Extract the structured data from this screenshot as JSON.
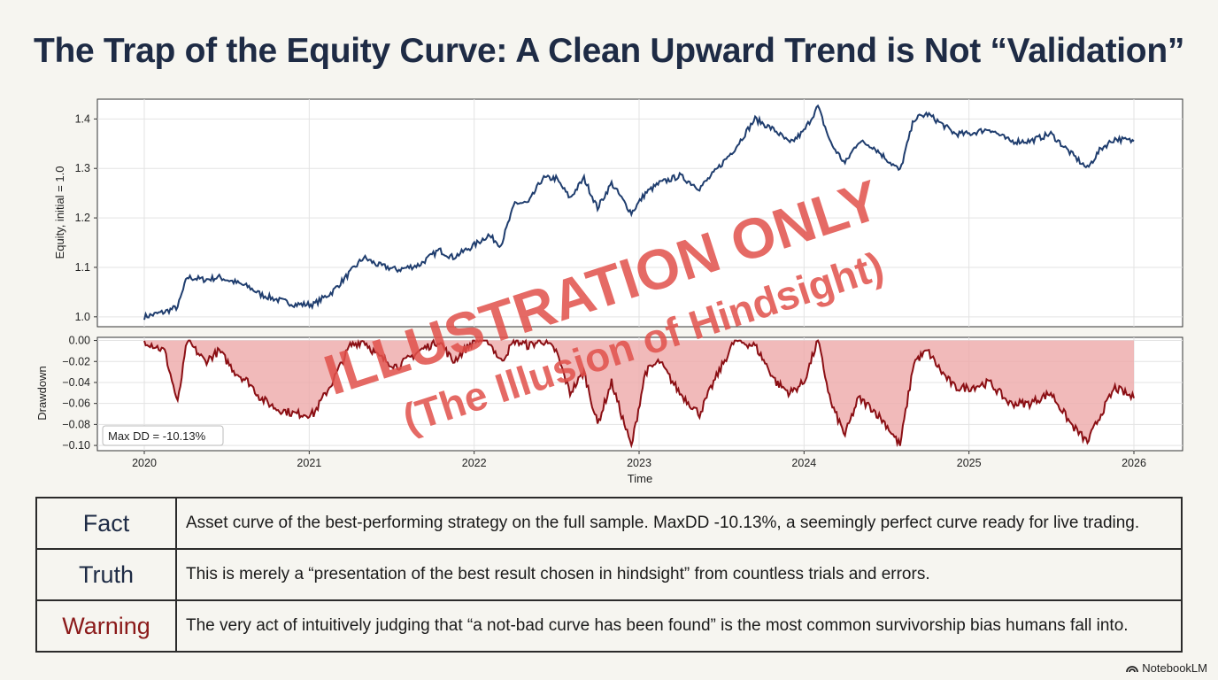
{
  "title": "The Trap of the Equity Curve: A Clean Upward Trend is Not “Validation”",
  "watermark": {
    "line1": "ILLUSTRATION ONLY",
    "line2": "(The Illusion of Hindsight)",
    "color": "#e0504a"
  },
  "colors": {
    "equity_line": "#1f3d6e",
    "drawdown_line": "#8b0f14",
    "drawdown_fill": "#eea9a9",
    "label_navy": "#1e2b45",
    "label_warn": "#8b1a1a"
  },
  "chart_data": [
    {
      "type": "line",
      "ylabel": "Equity, initial = 1.0",
      "ylim": [
        0.98,
        1.44
      ],
      "yticks": [
        "1.0",
        "1.1",
        "1.2",
        "1.3",
        "1.4"
      ],
      "grid": true,
      "series": [
        {
          "points": [
            [
              "2020-01-01",
              1.0
            ],
            [
              "2020-02-15",
              1.01
            ],
            [
              "2020-03-15",
              1.02
            ],
            [
              "2020-04-05",
              1.08
            ],
            [
              "2020-05-15",
              1.075
            ],
            [
              "2020-06-15",
              1.08
            ],
            [
              "2020-07-20",
              1.07
            ],
            [
              "2020-08-20",
              1.06
            ],
            [
              "2020-09-15",
              1.045
            ],
            [
              "2020-10-20",
              1.035
            ],
            [
              "2020-12-01",
              1.025
            ],
            [
              "2021-01-10",
              1.025
            ],
            [
              "2021-02-20",
              1.05
            ],
            [
              "2021-04-01",
              1.09
            ],
            [
              "2021-05-01",
              1.12
            ],
            [
              "2021-06-01",
              1.105
            ],
            [
              "2021-07-15",
              1.095
            ],
            [
              "2021-09-01",
              1.105
            ],
            [
              "2021-10-15",
              1.135
            ],
            [
              "2021-11-15",
              1.12
            ],
            [
              "2022-01-01",
              1.145
            ],
            [
              "2022-02-01",
              1.165
            ],
            [
              "2022-03-01",
              1.145
            ],
            [
              "2022-04-01",
              1.23
            ],
            [
              "2022-05-01",
              1.23
            ],
            [
              "2022-06-01",
              1.28
            ],
            [
              "2022-07-01",
              1.28
            ],
            [
              "2022-08-01",
              1.24
            ],
            [
              "2022-09-01",
              1.28
            ],
            [
              "2022-10-01",
              1.22
            ],
            [
              "2022-11-01",
              1.27
            ],
            [
              "2022-12-15",
              1.21
            ],
            [
              "2023-01-15",
              1.25
            ],
            [
              "2023-02-15",
              1.27
            ],
            [
              "2023-04-01",
              1.285
            ],
            [
              "2023-05-15",
              1.26
            ],
            [
              "2023-06-15",
              1.29
            ],
            [
              "2023-08-01",
              1.34
            ],
            [
              "2023-09-15",
              1.4
            ],
            [
              "2023-11-01",
              1.375
            ],
            [
              "2023-12-01",
              1.35
            ],
            [
              "2024-01-01",
              1.375
            ],
            [
              "2024-02-01",
              1.425
            ],
            [
              "2024-03-01",
              1.35
            ],
            [
              "2024-04-01",
              1.31
            ],
            [
              "2024-05-01",
              1.355
            ],
            [
              "2024-06-01",
              1.345
            ],
            [
              "2024-07-01",
              1.32
            ],
            [
              "2024-08-01",
              1.295
            ],
            [
              "2024-09-01",
              1.4
            ],
            [
              "2024-10-01",
              1.41
            ],
            [
              "2024-11-01",
              1.39
            ],
            [
              "2024-12-01",
              1.37
            ],
            [
              "2025-01-01",
              1.37
            ],
            [
              "2025-02-15",
              1.38
            ],
            [
              "2025-04-01",
              1.355
            ],
            [
              "2025-05-15",
              1.355
            ],
            [
              "2025-07-01",
              1.37
            ],
            [
              "2025-08-15",
              1.33
            ],
            [
              "2025-09-20",
              1.3
            ],
            [
              "2025-10-20",
              1.34
            ],
            [
              "2025-11-20",
              1.36
            ],
            [
              "2026-01-01",
              1.355
            ]
          ]
        }
      ]
    },
    {
      "type": "area",
      "ylabel": "Drawdown",
      "xlabel": "Time",
      "ylim": [
        -0.105,
        0.003
      ],
      "yticks": [
        "0.00",
        "−0.02",
        "−0.04",
        "−0.06",
        "−0.08",
        "−0.10"
      ],
      "xticks": [
        "2020",
        "2021",
        "2022",
        "2023",
        "2024",
        "2025",
        "2026"
      ],
      "grid": true,
      "annotation": "Max DD = -10.13%",
      "series": [
        {
          "points": [
            [
              "2020-01-01",
              0.0
            ],
            [
              "2020-02-15",
              -0.01
            ],
            [
              "2020-03-15",
              -0.06
            ],
            [
              "2020-04-05",
              0.0
            ],
            [
              "2020-05-15",
              -0.02
            ],
            [
              "2020-06-15",
              -0.01
            ],
            [
              "2020-07-20",
              -0.03
            ],
            [
              "2020-08-20",
              -0.04
            ],
            [
              "2020-09-15",
              -0.055
            ],
            [
              "2020-10-20",
              -0.065
            ],
            [
              "2020-12-01",
              -0.07
            ],
            [
              "2021-01-10",
              -0.07
            ],
            [
              "2021-02-20",
              -0.04
            ],
            [
              "2021-04-01",
              -0.005
            ],
            [
              "2021-05-01",
              0.0
            ],
            [
              "2021-06-01",
              -0.015
            ],
            [
              "2021-07-15",
              -0.025
            ],
            [
              "2021-09-01",
              -0.01
            ],
            [
              "2021-10-15",
              0.0
            ],
            [
              "2021-11-15",
              -0.02
            ],
            [
              "2022-01-01",
              0.0
            ],
            [
              "2022-02-01",
              0.0
            ],
            [
              "2022-03-01",
              -0.02
            ],
            [
              "2022-04-01",
              0.0
            ],
            [
              "2022-05-01",
              -0.005
            ],
            [
              "2022-06-01",
              0.0
            ],
            [
              "2022-07-01",
              -0.01
            ],
            [
              "2022-08-01",
              -0.05
            ],
            [
              "2022-09-01",
              -0.03
            ],
            [
              "2022-10-01",
              -0.08
            ],
            [
              "2022-11-01",
              -0.04
            ],
            [
              "2022-12-15",
              -0.1013
            ],
            [
              "2023-01-15",
              -0.03
            ],
            [
              "2023-02-15",
              -0.02
            ],
            [
              "2023-04-01",
              -0.05
            ],
            [
              "2023-05-15",
              -0.07
            ],
            [
              "2023-06-15",
              -0.04
            ],
            [
              "2023-08-01",
              0.0
            ],
            [
              "2023-09-15",
              -0.005
            ],
            [
              "2023-11-01",
              -0.04
            ],
            [
              "2023-12-01",
              -0.05
            ],
            [
              "2024-01-01",
              -0.04
            ],
            [
              "2024-02-01",
              0.0
            ],
            [
              "2024-03-01",
              -0.06
            ],
            [
              "2024-04-01",
              -0.09
            ],
            [
              "2024-05-01",
              -0.055
            ],
            [
              "2024-06-01",
              -0.065
            ],
            [
              "2024-07-01",
              -0.08
            ],
            [
              "2024-08-01",
              -0.1
            ],
            [
              "2024-09-01",
              -0.02
            ],
            [
              "2024-10-01",
              -0.01
            ],
            [
              "2024-11-01",
              -0.03
            ],
            [
              "2024-12-01",
              -0.045
            ],
            [
              "2025-01-01",
              -0.045
            ],
            [
              "2025-02-15",
              -0.04
            ],
            [
              "2025-04-01",
              -0.06
            ],
            [
              "2025-05-15",
              -0.06
            ],
            [
              "2025-07-01",
              -0.05
            ],
            [
              "2025-08-15",
              -0.08
            ],
            [
              "2025-09-20",
              -0.097
            ],
            [
              "2025-10-20",
              -0.07
            ],
            [
              "2025-11-20",
              -0.045
            ],
            [
              "2026-01-01",
              -0.055
            ]
          ]
        }
      ]
    }
  ],
  "notes": [
    {
      "label": "Fact",
      "text": "Asset curve of the best-performing strategy on the full sample. MaxDD -10.13%, a seemingly perfect curve ready for live trading."
    },
    {
      "label": "Truth",
      "text": "This is merely a “presentation of the best result chosen in hindsight” from countless trials and errors."
    },
    {
      "label": "Warning",
      "text": "The very act of intuitively judging that “a not-bad curve has been found” is the most common survivorship bias humans fall into."
    }
  ],
  "brand": "NotebookLM"
}
